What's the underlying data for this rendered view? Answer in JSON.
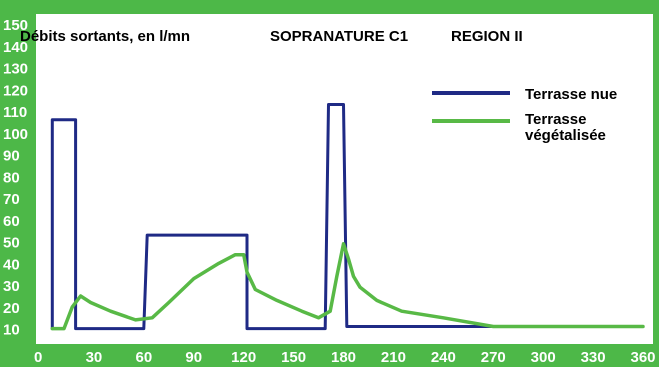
{
  "chart_data": {
    "type": "line",
    "title": "Débits sortants, en l/mn",
    "subtitle_1": "SOPRANATURE C1",
    "subtitle_2": "REGION II",
    "xlabel": "",
    "ylabel": "",
    "xlim": [
      0,
      360
    ],
    "ylim": [
      10,
      150
    ],
    "x_ticks": [
      "0",
      "30",
      "60",
      "90",
      "120",
      "150",
      "180",
      "210",
      "240",
      "270",
      "300",
      "330",
      "360"
    ],
    "y_ticks": [
      "10",
      "20",
      "30",
      "40",
      "50",
      "60",
      "70",
      "80",
      "90",
      "100",
      "110",
      "120",
      "130",
      "140",
      "150"
    ],
    "grid": false,
    "legend_position": "top-right",
    "colors": {
      "frame": "#4db848",
      "background": "#ffffff",
      "tick_text": "#ffffff",
      "text": "#000000"
    },
    "series": [
      {
        "name": "Terrasse nue",
        "color": "#1f2a85",
        "x": [
          5,
          5,
          19,
          19,
          60,
          62,
          122,
          122,
          169,
          171,
          180,
          182,
          360
        ],
        "y": [
          10,
          106,
          106,
          10,
          10,
          53,
          53,
          10,
          10,
          113,
          113,
          11,
          11
        ]
      },
      {
        "name": "Terrasse végétalisée",
        "color": "#58b946",
        "x": [
          5,
          12,
          17,
          22,
          28,
          40,
          55,
          65,
          75,
          90,
          105,
          115,
          120,
          122,
          127,
          140,
          155,
          165,
          172,
          176,
          180,
          183,
          186,
          190,
          200,
          215,
          240,
          270,
          300,
          330,
          360
        ],
        "y": [
          10,
          10,
          20,
          25,
          22,
          18,
          14,
          15,
          22,
          33,
          40,
          44,
          44,
          36,
          28,
          23,
          18,
          15,
          18,
          34,
          49,
          42,
          34,
          29,
          23,
          18,
          15,
          11,
          11,
          11,
          11
        ]
      }
    ]
  }
}
